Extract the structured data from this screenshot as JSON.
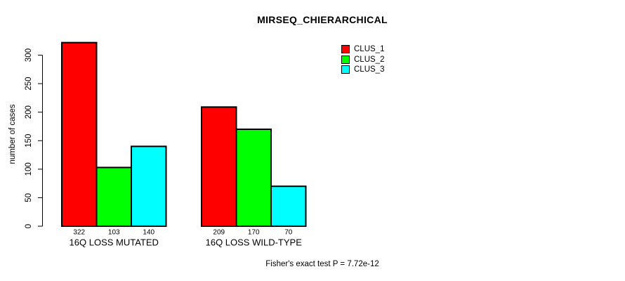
{
  "page": {
    "background_color": "#ffffff",
    "text_color": "#000000"
  },
  "chart_data": {
    "type": "bar",
    "title": "MIRSEQ_CHIERARCHICAL",
    "xlabel": "",
    "ylabel": "number of cases",
    "categories": [
      "16Q LOSS MUTATED",
      "16Q LOSS WILD-TYPE"
    ],
    "series": [
      {
        "name": "CLUS_1",
        "color": "#ff0000",
        "values": [
          322,
          209
        ]
      },
      {
        "name": "CLUS_2",
        "color": "#00ff00",
        "values": [
          103,
          170
        ]
      },
      {
        "name": "CLUS_3",
        "color": "#00ffff",
        "values": [
          140,
          70
        ]
      }
    ],
    "bar_value_labels": [
      [
        322,
        103,
        140
      ],
      [
        209,
        170,
        70
      ]
    ],
    "yticks": [
      0,
      50,
      100,
      150,
      200,
      250,
      300
    ],
    "ylim": [
      0,
      322
    ],
    "grid": false,
    "legend_position": "top-right",
    "legend_entries": [
      "CLUS_1",
      "CLUS_2",
      "CLUS_3"
    ],
    "annotation": "Fisher's exact test P = 7.72e-12",
    "bar_border_color": "#000000",
    "axis_color": "#000000"
  }
}
